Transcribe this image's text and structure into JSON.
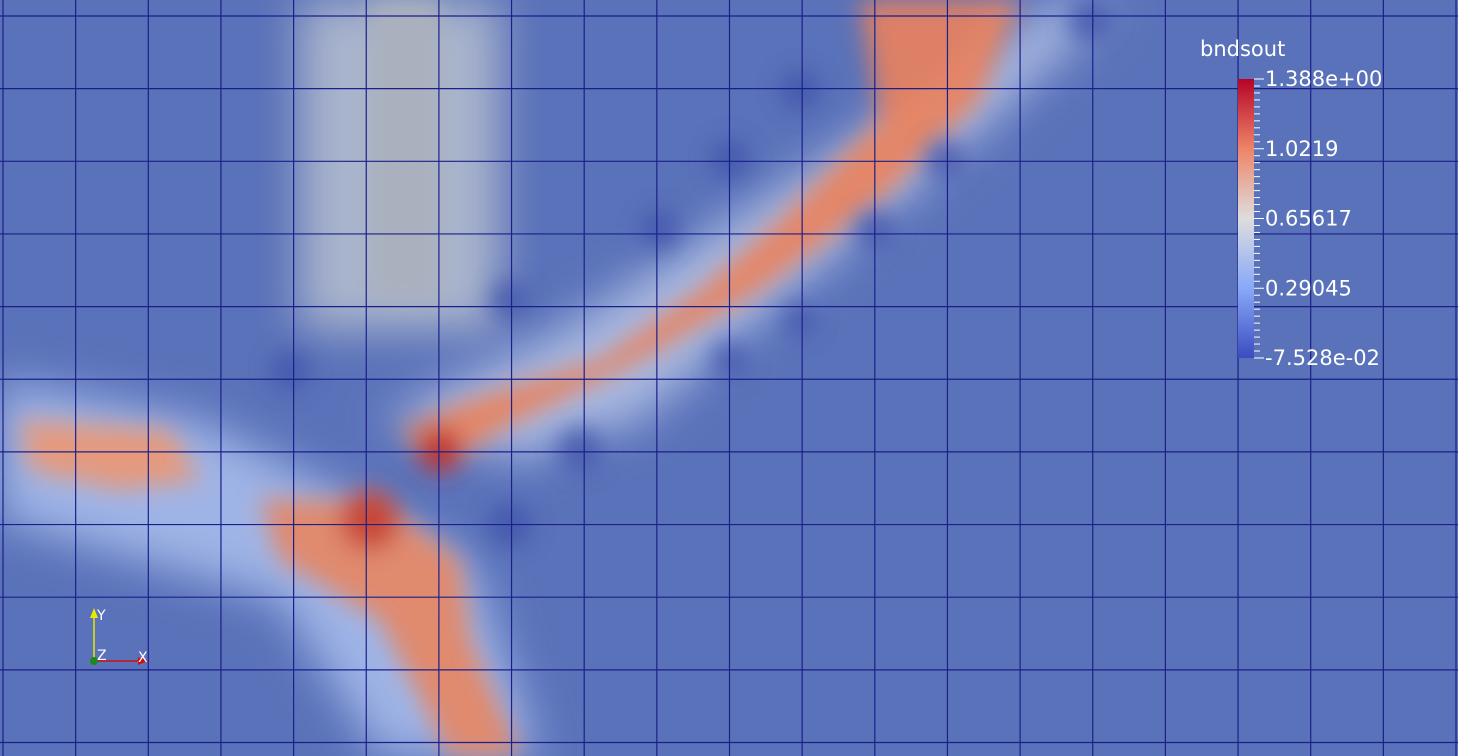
{
  "legend": {
    "title": "bndsout",
    "labels": [
      "1.388e+00",
      "1.0219",
      "0.65617",
      "0.29045",
      "-7.528e-02"
    ]
  },
  "orientation_axes": {
    "y": "Y",
    "z": "Z",
    "x": "X"
  }
}
